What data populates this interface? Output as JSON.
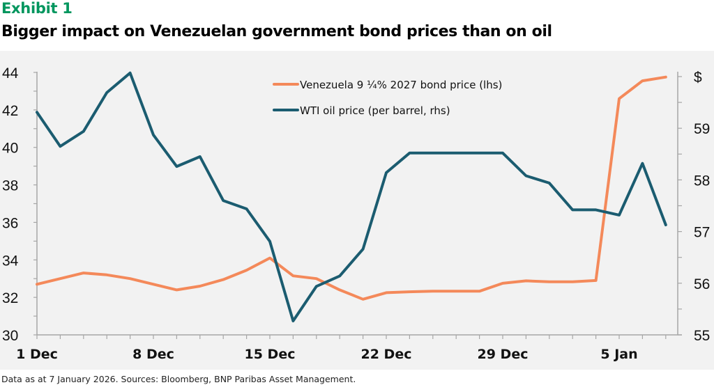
{
  "header": {
    "exhibit": "Exhibit 1",
    "title": "Bigger impact on Venezuelan government bond prices than on oil"
  },
  "footer": {
    "note": "Data as at 7 January 2026. Sources: Bloomberg, BNP Paribas Asset Management."
  },
  "colors": {
    "exhibit_green": "#00965E",
    "bond_orange": "#F4895A",
    "wti_teal": "#1B5C70",
    "panel_bg": "#F2F2F2",
    "axis_gray": "#A6A6A6"
  },
  "chart_data": {
    "type": "line",
    "title": "Bigger impact on Venezuelan government bond prices than on oil",
    "xlabel": "",
    "ylabel_left": "",
    "ylabel_right": "$",
    "x": [
      "1 Dec",
      "2 Dec",
      "3 Dec",
      "4 Dec",
      "5 Dec",
      "8 Dec",
      "9 Dec",
      "10 Dec",
      "11 Dec",
      "12 Dec",
      "15 Dec",
      "16 Dec",
      "17 Dec",
      "18 Dec",
      "19 Dec",
      "22 Dec",
      "23 Dec",
      "24 Dec",
      "25 Dec",
      "26 Dec",
      "29 Dec",
      "30 Dec",
      "31 Dec",
      "1 Jan",
      "2 Jan",
      "5 Jan",
      "6 Jan",
      "7 Jan"
    ],
    "x_tick_labels": [
      "1 Dec",
      "8 Dec",
      "15 Dec",
      "22 Dec",
      "29 Dec",
      "5 Jan"
    ],
    "x_tick_label_indices": [
      0,
      5,
      10,
      15,
      20,
      25
    ],
    "ylim_left": [
      30,
      44
    ],
    "yticks_left": [
      "30",
      "32",
      "34",
      "36",
      "38",
      "40",
      "42",
      "44"
    ],
    "ylim_right": [
      55,
      60
    ],
    "yticks_right": [
      "55",
      "56",
      "57",
      "58",
      "59",
      "$"
    ],
    "legend_position": "top-center",
    "grid": false,
    "series": [
      {
        "name": "Venezuela 9 ¼% 2027 bond price (lhs)",
        "axis": "left",
        "color": "#F4895A",
        "values": [
          32.7,
          33.0,
          33.3,
          33.2,
          33.0,
          32.7,
          32.4,
          32.6,
          32.95,
          33.45,
          34.1,
          33.15,
          33.0,
          32.4,
          31.9,
          32.25,
          32.3,
          32.33,
          32.33,
          32.33,
          32.75,
          32.88,
          32.83,
          32.83,
          32.9,
          42.6,
          43.55,
          43.75
        ]
      },
      {
        "name": "WTI oil price (per barrel, rhs)",
        "axis": "right",
        "color": "#1B5C70",
        "values": [
          59.31,
          58.65,
          58.94,
          59.69,
          60.07,
          58.87,
          58.26,
          58.45,
          57.6,
          57.44,
          56.81,
          55.27,
          55.94,
          56.14,
          56.66,
          58.14,
          58.52,
          58.52,
          58.52,
          58.52,
          58.52,
          58.08,
          57.94,
          57.42,
          57.42,
          57.32,
          58.32,
          57.13
        ]
      }
    ]
  }
}
